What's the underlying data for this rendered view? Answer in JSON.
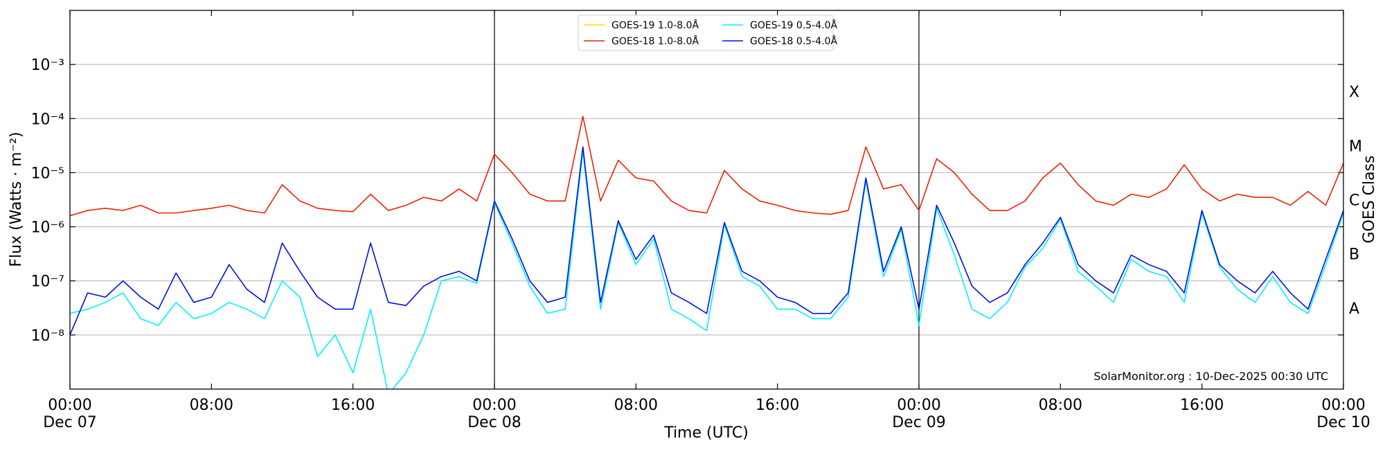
{
  "chart_data": {
    "type": "line",
    "xlabel": "Time (UTC)",
    "ylabel": "Flux (Watts · m⁻²)",
    "y2label": "GOES Class",
    "annotation": "SolarMonitor.org : 10-Dec-2025 00:30 UTC",
    "log_y": true,
    "grid": true,
    "legend": "upper center",
    "ylim": [
      1e-09,
      0.01
    ],
    "yticks": [
      {
        "value": 1e-08,
        "label": "10⁻⁸"
      },
      {
        "value": 1e-07,
        "label": "10⁻⁷"
      },
      {
        "value": 1e-06,
        "label": "10⁻⁶"
      },
      {
        "value": 1e-05,
        "label": "10⁻⁵"
      },
      {
        "value": 0.0001,
        "label": "10⁻⁴"
      },
      {
        "value": 0.001,
        "label": "10⁻³"
      }
    ],
    "class_ticks": [
      {
        "value": 3.16e-08,
        "label": "A"
      },
      {
        "value": 3.16e-07,
        "label": "B"
      },
      {
        "value": 3.16e-06,
        "label": "C"
      },
      {
        "value": 3.16e-05,
        "label": "M"
      },
      {
        "value": 0.000316,
        "label": "X"
      }
    ],
    "xlim": [
      "Dec 07 00:00",
      "Dec 10 00:00"
    ],
    "xticks": [
      {
        "value": "Dec 07 00:00",
        "label": "00:00\nDec 07"
      },
      {
        "value": "Dec 07 08:00",
        "label": "08:00"
      },
      {
        "value": "Dec 07 16:00",
        "label": "16:00"
      },
      {
        "value": "Dec 08 00:00",
        "label": "00:00\nDec 08"
      },
      {
        "value": "Dec 08 08:00",
        "label": "08:00"
      },
      {
        "value": "Dec 08 16:00",
        "label": "16:00"
      },
      {
        "value": "Dec 09 00:00",
        "label": "00:00\nDec 09"
      },
      {
        "value": "Dec 09 08:00",
        "label": "08:00"
      },
      {
        "value": "Dec 09 16:00",
        "label": "16:00"
      },
      {
        "value": "Dec 10 00:00",
        "label": "00:00\nDec 10"
      }
    ],
    "day_lines": [
      "Dec 08 00:00",
      "Dec 09 00:00"
    ],
    "x": [
      "Dec 07 00:00",
      "Dec 07 01:00",
      "Dec 07 02:00",
      "Dec 07 03:00",
      "Dec 07 04:00",
      "Dec 07 05:00",
      "Dec 07 06:00",
      "Dec 07 07:00",
      "Dec 07 08:00",
      "Dec 07 09:00",
      "Dec 07 10:00",
      "Dec 07 11:00",
      "Dec 07 12:00",
      "Dec 07 13:00",
      "Dec 07 14:00",
      "Dec 07 15:00",
      "Dec 07 16:00",
      "Dec 07 17:00",
      "Dec 07 18:00",
      "Dec 07 19:00",
      "Dec 07 20:00",
      "Dec 07 21:00",
      "Dec 07 22:00",
      "Dec 07 23:00",
      "Dec 08 00:00",
      "Dec 08 01:00",
      "Dec 08 02:00",
      "Dec 08 03:00",
      "Dec 08 04:00",
      "Dec 08 05:00",
      "Dec 08 06:00",
      "Dec 08 07:00",
      "Dec 08 08:00",
      "Dec 08 09:00",
      "Dec 08 10:00",
      "Dec 08 11:00",
      "Dec 08 12:00",
      "Dec 08 13:00",
      "Dec 08 14:00",
      "Dec 08 15:00",
      "Dec 08 16:00",
      "Dec 08 17:00",
      "Dec 08 18:00",
      "Dec 08 19:00",
      "Dec 08 20:00",
      "Dec 08 21:00",
      "Dec 08 22:00",
      "Dec 08 23:00",
      "Dec 09 00:00",
      "Dec 09 01:00",
      "Dec 09 02:00",
      "Dec 09 03:00",
      "Dec 09 04:00",
      "Dec 09 05:00",
      "Dec 09 06:00",
      "Dec 09 07:00",
      "Dec 09 08:00",
      "Dec 09 09:00",
      "Dec 09 10:00",
      "Dec 09 11:00",
      "Dec 09 12:00",
      "Dec 09 13:00",
      "Dec 09 14:00",
      "Dec 09 15:00",
      "Dec 09 16:00",
      "Dec 09 17:00",
      "Dec 09 18:00",
      "Dec 09 19:00",
      "Dec 09 20:00",
      "Dec 09 21:00",
      "Dec 09 22:00",
      "Dec 09 23:00",
      "Dec 10 00:00"
    ],
    "series": [
      {
        "name": "GOES-19 1.0-8.0Å",
        "color": "#ffd700",
        "values": [
          null,
          null,
          null,
          null,
          null,
          null,
          null,
          null,
          null,
          null,
          null,
          null,
          null,
          null,
          null,
          null,
          null,
          null,
          null,
          null,
          null,
          null,
          null,
          null,
          null,
          null,
          null,
          null,
          null,
          null,
          null,
          null,
          null,
          null,
          null,
          null,
          null,
          null,
          null,
          null,
          null,
          null,
          null,
          null,
          null,
          null,
          null,
          null,
          null,
          null,
          null,
          null,
          null,
          null,
          null,
          null,
          null,
          null,
          null,
          null,
          null,
          null,
          null,
          null,
          null,
          null,
          null,
          null,
          null,
          null,
          null,
          null,
          null
        ]
      },
      {
        "name": "GOES-18 1.0-8.0Å",
        "color": "#f02000",
        "values": [
          1.6e-06,
          2e-06,
          2.2e-06,
          2e-06,
          2.5e-06,
          1.8e-06,
          1.8e-06,
          2e-06,
          2.2e-06,
          2.5e-06,
          2e-06,
          1.8e-06,
          6e-06,
          3e-06,
          2.2e-06,
          2e-06,
          1.9e-06,
          4e-06,
          2e-06,
          2.5e-06,
          3.5e-06,
          3e-06,
          5e-06,
          3e-06,
          2.2e-05,
          1e-05,
          4e-06,
          3e-06,
          3e-06,
          0.00011,
          3e-06,
          1.7e-05,
          8e-06,
          7e-06,
          3e-06,
          2e-06,
          1.8e-06,
          1.1e-05,
          5e-06,
          3e-06,
          2.5e-06,
          2e-06,
          1.8e-06,
          1.7e-06,
          2e-06,
          3e-05,
          5e-06,
          6e-06,
          2e-06,
          1.8e-05,
          1e-05,
          4e-06,
          2e-06,
          2e-06,
          3e-06,
          8e-06,
          1.5e-05,
          6e-06,
          3e-06,
          2.5e-06,
          4e-06,
          3.5e-06,
          5e-06,
          1.4e-05,
          5e-06,
          3e-06,
          4e-06,
          3.5e-06,
          3.5e-06,
          2.5e-06,
          4.5e-06,
          2.5e-06,
          1.5e-05
        ]
      },
      {
        "name": "GOES-19 0.5-4.0Å",
        "color": "#00f0ff",
        "values": [
          2.5e-08,
          3e-08,
          4e-08,
          6e-08,
          2e-08,
          1.5e-08,
          4e-08,
          2e-08,
          2.5e-08,
          4e-08,
          3e-08,
          2e-08,
          1e-07,
          5e-08,
          4e-09,
          1e-08,
          2e-09,
          3e-08,
          8e-10,
          2e-09,
          1e-08,
          1e-07,
          1.2e-07,
          9e-08,
          2.8e-06,
          5e-07,
          8e-08,
          2.5e-08,
          3e-08,
          2.5e-05,
          3e-08,
          1.2e-06,
          2e-07,
          6e-07,
          3e-08,
          2e-08,
          1.2e-08,
          1.1e-06,
          1.2e-07,
          8e-08,
          3e-08,
          3e-08,
          2e-08,
          2e-08,
          5e-08,
          7e-06,
          1.2e-07,
          9e-07,
          1.5e-08,
          2.2e-06,
          3e-07,
          3e-08,
          2e-08,
          4e-08,
          1.8e-07,
          4e-07,
          1.4e-06,
          1.5e-07,
          8e-08,
          4e-08,
          2.5e-07,
          1.5e-07,
          1.2e-07,
          4e-08,
          1.8e-06,
          1.8e-07,
          7e-08,
          4e-08,
          1.2e-07,
          4e-08,
          2.5e-08,
          2e-07,
          1.8e-06
        ]
      },
      {
        "name": "GOES-18 0.5-4.0Å",
        "color": "#0010e0",
        "values": [
          1e-08,
          6e-08,
          5e-08,
          1e-07,
          5e-08,
          3e-08,
          1.4e-07,
          4e-08,
          5e-08,
          2e-07,
          7e-08,
          4e-08,
          5e-07,
          1.5e-07,
          5e-08,
          3e-08,
          3e-08,
          5e-07,
          4e-08,
          3.5e-08,
          8e-08,
          1.2e-07,
          1.5e-07,
          1e-07,
          3e-06,
          6e-07,
          1e-07,
          4e-08,
          5e-08,
          3e-05,
          4e-08,
          1.3e-06,
          2.5e-07,
          7e-07,
          6e-08,
          4e-08,
          2.5e-08,
          1.2e-06,
          1.5e-07,
          1e-07,
          5e-08,
          4e-08,
          2.5e-08,
          2.5e-08,
          6e-08,
          8e-06,
          1.5e-07,
          1e-06,
          3e-08,
          2.5e-06,
          5e-07,
          8e-08,
          4e-08,
          6e-08,
          2e-07,
          5e-07,
          1.5e-06,
          2e-07,
          1e-07,
          6e-08,
          3e-07,
          2e-07,
          1.5e-07,
          6e-08,
          2e-06,
          2e-07,
          1e-07,
          6e-08,
          1.5e-07,
          6e-08,
          3e-08,
          2.5e-07,
          2e-06
        ]
      }
    ]
  }
}
